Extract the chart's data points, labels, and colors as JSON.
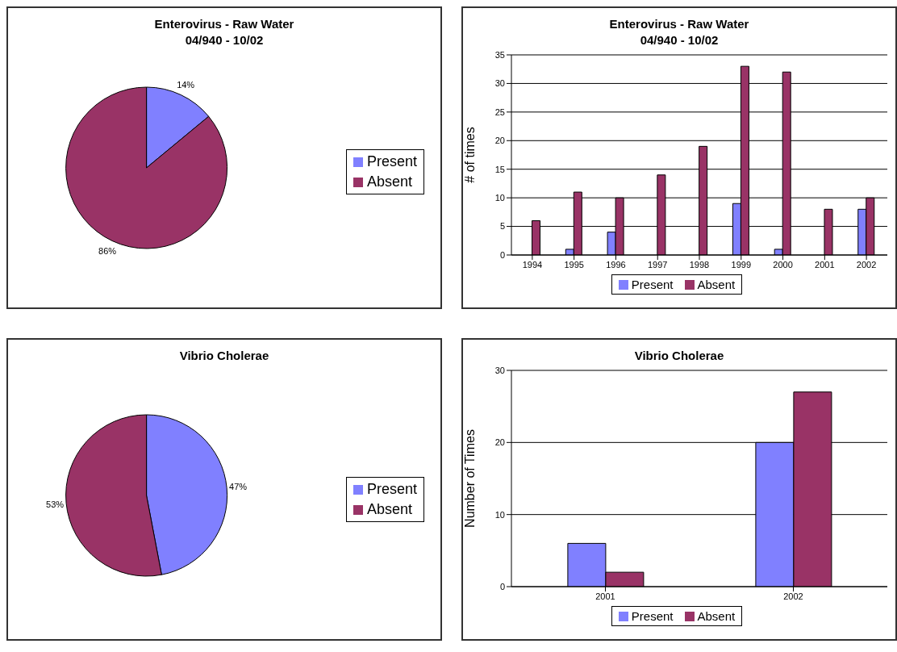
{
  "chart_data": [
    {
      "type": "pie",
      "title": "Enterovirus - Raw Water",
      "subtitle": "04/940 - 10/02",
      "categories": [
        "Present",
        "Absent"
      ],
      "values": [
        14,
        86
      ],
      "value_labels": [
        "14%",
        "86%"
      ],
      "colors": [
        "#8080ff",
        "#993366"
      ],
      "legend": "right"
    },
    {
      "type": "bar",
      "title": "Enterovirus - Raw Water",
      "subtitle": "04/940 - 10/02",
      "ylabel": "# of times",
      "categories": [
        "1994",
        "1995",
        "1996",
        "1997",
        "1998",
        "1999",
        "2000",
        "2001",
        "2002"
      ],
      "series": [
        {
          "name": "Present",
          "color": "#8080ff",
          "values": [
            0,
            1,
            4,
            0,
            0,
            9,
            1,
            0,
            8
          ]
        },
        {
          "name": "Absent",
          "color": "#993366",
          "values": [
            6,
            11,
            10,
            14,
            19,
            33,
            32,
            8,
            10
          ]
        }
      ],
      "ylim": [
        0,
        35
      ],
      "yticks": [
        0,
        5,
        10,
        15,
        20,
        25,
        30,
        35
      ],
      "grid": "y",
      "legend": "bottom"
    },
    {
      "type": "pie",
      "title": "Vibrio Cholerae",
      "categories": [
        "Present",
        "Absent"
      ],
      "values": [
        47,
        53
      ],
      "value_labels": [
        "47%",
        "53%"
      ],
      "colors": [
        "#8080ff",
        "#993366"
      ],
      "legend": "right"
    },
    {
      "type": "bar",
      "title": "Vibrio Cholerae",
      "ylabel": "Number of Times",
      "categories": [
        "2001",
        "2002"
      ],
      "series": [
        {
          "name": "Present",
          "color": "#8080ff",
          "values": [
            6,
            20
          ]
        },
        {
          "name": "Absent",
          "color": "#993366",
          "values": [
            2,
            27
          ]
        }
      ],
      "ylim": [
        0,
        30
      ],
      "yticks": [
        0,
        10,
        20,
        30
      ],
      "grid": "y",
      "legend": "bottom"
    }
  ]
}
